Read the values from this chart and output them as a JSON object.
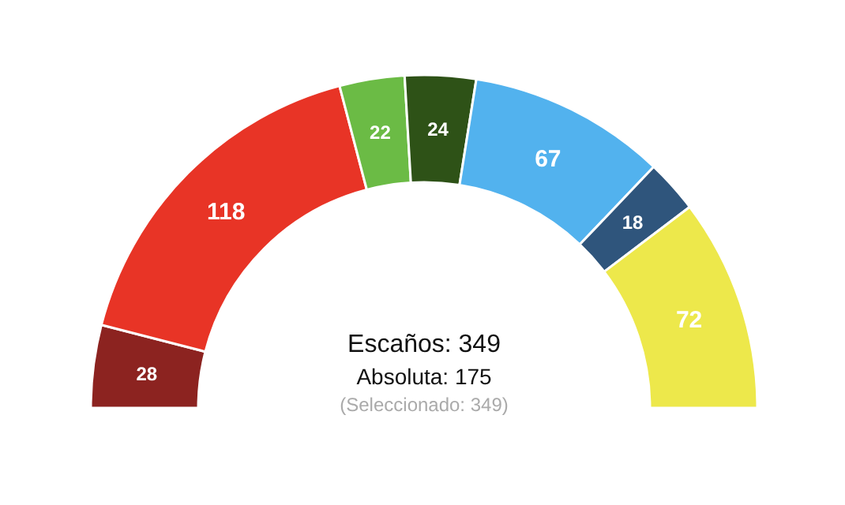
{
  "chart_data": {
    "type": "donut",
    "categories": [
      null,
      null,
      null,
      null,
      null,
      null,
      null
    ],
    "values": [
      28,
      118,
      22,
      24,
      67,
      18,
      72
    ],
    "colors": [
      "#8c2320",
      "#e83426",
      "#6bbb45",
      "#2e5217",
      "#52b2ee",
      "#2f557c",
      "#ede84b"
    ],
    "data_labels": true,
    "annotations": [
      "Escaños: 349",
      "Absoluta: 175",
      "(Seleccionado: 349)"
    ]
  }
}
